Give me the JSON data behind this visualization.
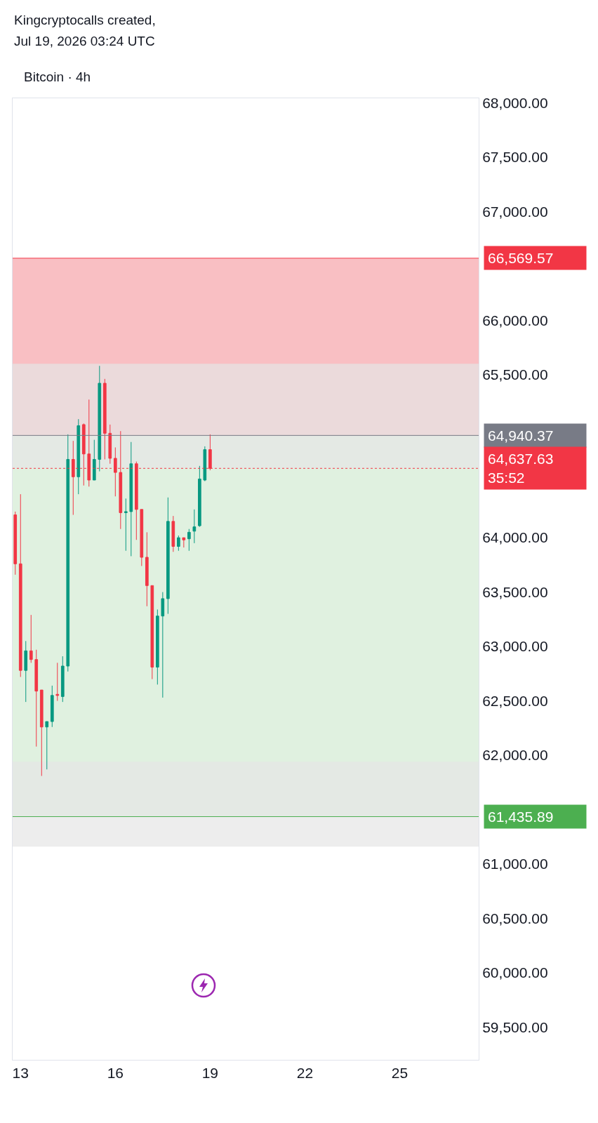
{
  "chart_data": {
    "type": "candlestick",
    "title": "Bitcoin · 4h",
    "annotations": [
      "Kingcryptocalls created,",
      "Jul 19, 2026 03:24 UTC"
    ],
    "x": [
      "2026-07-12T20:00",
      "2026-07-13T00:00",
      "2026-07-13T04:00",
      "2026-07-13T08:00",
      "2026-07-13T12:00",
      "2026-07-13T16:00",
      "2026-07-13T20:00",
      "2026-07-14T00:00",
      "2026-07-14T04:00",
      "2026-07-14T08:00",
      "2026-07-14T12:00",
      "2026-07-14T16:00",
      "2026-07-14T20:00",
      "2026-07-15T00:00",
      "2026-07-15T04:00",
      "2026-07-15T08:00",
      "2026-07-15T12:00",
      "2026-07-15T16:00",
      "2026-07-15T20:00",
      "2026-07-16T00:00",
      "2026-07-16T04:00",
      "2026-07-16T08:00",
      "2026-07-16T12:00",
      "2026-07-16T16:00",
      "2026-07-16T20:00",
      "2026-07-17T00:00",
      "2026-07-17T04:00",
      "2026-07-17T08:00",
      "2026-07-17T12:00",
      "2026-07-17T16:00",
      "2026-07-17T20:00",
      "2026-07-18T00:00",
      "2026-07-18T04:00",
      "2026-07-18T08:00",
      "2026-07-18T12:00",
      "2026-07-18T16:00",
      "2026-07-18T20:00",
      "2026-07-19T00:00"
    ],
    "ohlc": [
      [
        64210,
        64240,
        63660,
        63760
      ],
      [
        63760,
        64400,
        62720,
        62780
      ],
      [
        62780,
        63050,
        62490,
        62960
      ],
      [
        62960,
        63290,
        62850,
        62880
      ],
      [
        62880,
        62970,
        62080,
        62590
      ],
      [
        62600,
        62600,
        61810,
        62260
      ],
      [
        62260,
        62310,
        61870,
        62310
      ],
      [
        62310,
        62640,
        62260,
        62550
      ],
      [
        62560,
        62850,
        62500,
        62550
      ],
      [
        62540,
        62910,
        62490,
        62820
      ],
      [
        62820,
        64950,
        62770,
        64720
      ],
      [
        64720,
        64890,
        64210,
        64560
      ],
      [
        64560,
        65090,
        64400,
        65030
      ],
      [
        65040,
        65050,
        64480,
        64770
      ],
      [
        64770,
        65270,
        64470,
        64530
      ],
      [
        64530,
        64900,
        64530,
        64720
      ],
      [
        64720,
        65580,
        64610,
        65420
      ],
      [
        65420,
        65460,
        64720,
        64960
      ],
      [
        64960,
        65040,
        64680,
        64730
      ],
      [
        64730,
        64830,
        64380,
        64600
      ],
      [
        64600,
        64980,
        64080,
        64230
      ],
      [
        64230,
        64360,
        63880,
        64240
      ],
      [
        64240,
        64880,
        63830,
        64680
      ],
      [
        64680,
        64700,
        63980,
        64260
      ],
      [
        64260,
        64260,
        63740,
        63820
      ],
      [
        63820,
        64050,
        63370,
        63560
      ],
      [
        63560,
        63560,
        62700,
        62810
      ],
      [
        62810,
        63340,
        62650,
        63280
      ],
      [
        63280,
        63500,
        62530,
        63440
      ],
      [
        63440,
        64370,
        63300,
        64150
      ],
      [
        64150,
        64200,
        63870,
        63920
      ],
      [
        63920,
        64020,
        63880,
        64000
      ],
      [
        64000,
        64000,
        63910,
        63980
      ],
      [
        63990,
        64080,
        63880,
        64050
      ],
      [
        64060,
        64260,
        63950,
        64100
      ],
      [
        64110,
        64660,
        64100,
        64540
      ],
      [
        64530,
        64840,
        64520,
        64810
      ],
      [
        64810,
        64950,
        64620,
        64637.63
      ]
    ],
    "xlim": [
      "2026-07-12T18:00",
      "2026-07-27T12:00"
    ],
    "xticks": [
      {
        "value": "2026-07-13",
        "label": "13"
      },
      {
        "value": "2026-07-16",
        "label": "16"
      },
      {
        "value": "2026-07-19",
        "label": "19"
      },
      {
        "value": "2026-07-22",
        "label": "22"
      },
      {
        "value": "2026-07-25",
        "label": "25"
      }
    ],
    "ylim": [
      59200,
      68040
    ],
    "yticks": [
      {
        "value": 59500,
        "label": "59,500.00"
      },
      {
        "value": 60000,
        "label": "60,000.00"
      },
      {
        "value": 60500,
        "label": "60,500.00"
      },
      {
        "value": 61000,
        "label": "61,000.00"
      },
      {
        "value": 62000,
        "label": "62,000.00"
      },
      {
        "value": 62500,
        "label": "62,500.00"
      },
      {
        "value": 63000,
        "label": "63,000.00"
      },
      {
        "value": 63500,
        "label": "63,500.00"
      },
      {
        "value": 64000,
        "label": "64,000.00"
      },
      {
        "value": 65500,
        "label": "65,500.00"
      },
      {
        "value": 66000,
        "label": "66,000.00"
      },
      {
        "value": 67000,
        "label": "67,000.00"
      },
      {
        "value": 67500,
        "label": "67,500.00"
      },
      {
        "value": 68000,
        "label": "68,000.00"
      }
    ],
    "bands": [
      {
        "axis": "y",
        "from": 64940.37,
        "to": 66569.57,
        "color": "#f7a4a9"
      },
      {
        "axis": "y",
        "from": 61435.89,
        "to": 64940.37,
        "color": "#d3ebd3"
      },
      {
        "axis": "y",
        "from": 64637.63,
        "to": 65600,
        "color": "#e6e6e6"
      },
      {
        "axis": "y",
        "from": 61160,
        "to": 61940,
        "color": "#e6e6e6"
      }
    ],
    "ref_lines": [
      {
        "axis": "y",
        "value": 66569.57,
        "label": "66,569.57",
        "color": "#f23645",
        "line_style": "solid"
      },
      {
        "axis": "y",
        "value": 64940.37,
        "label": "64,940.37",
        "color": "#787b86",
        "line_style": "solid"
      },
      {
        "axis": "y",
        "value": 64637.63,
        "label": "64,637.63\n35:52",
        "color": "#f23645",
        "line_style": "dotted"
      },
      {
        "axis": "y",
        "value": 61435.89,
        "label": "61,435.89",
        "color": "#4caf50",
        "line_style": "solid"
      }
    ]
  }
}
